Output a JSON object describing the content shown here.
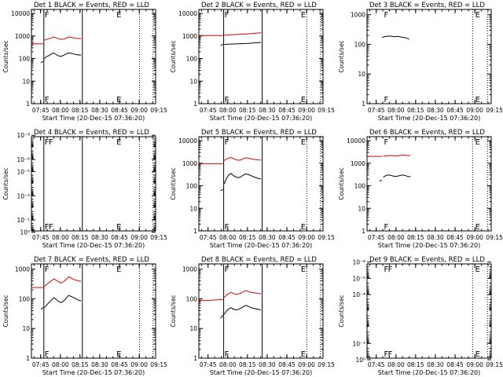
{
  "colors": {
    "events": "#000000",
    "lld": "#dd0000",
    "axis": "#000000",
    "background": "#ffffff"
  },
  "x_tick_labels": [
    "07:45",
    "08:00",
    "08:15",
    "08:30",
    "08:45",
    "09:00",
    "09:15"
  ],
  "xlabel": "Start Time (20-Dec-15 07:36:20)",
  "ylabel": "Counts/sec",
  "chart_data": [
    {
      "type": "line",
      "title": "Det 1 BLACK = Events, RED = LLD",
      "xlabel": "Start Time (20-Dec-15 07:36:20)",
      "ylabel": "Counts/sec",
      "xlim": [
        0,
        100
      ],
      "ylim": [
        1,
        15000
      ],
      "y_scale": "log",
      "x_tick_values": [
        7.4,
        23.3,
        39.1,
        55,
        70.9,
        86.8,
        102.6
      ],
      "y_ticks": [
        {
          "v": 1,
          "label": "1"
        },
        {
          "v": 10,
          "label": "10"
        },
        {
          "v": 100,
          "label": "100"
        },
        {
          "v": 1000,
          "label": "1000"
        },
        {
          "v": 10000,
          "label": "10000"
        }
      ],
      "solid_lines": [
        10,
        41
      ],
      "dotted_lines": [
        87,
        98
      ],
      "flags": [
        {
          "x": 10,
          "label": "F"
        },
        {
          "x": 67.8,
          "label": "E"
        }
      ],
      "series": [
        {
          "key": "lld",
          "x": [
            0,
            3,
            6,
            9,
            9.5
          ],
          "y": [
            450,
            450,
            450,
            450,
            450
          ]
        },
        {
          "key": "events",
          "x": [
            7.5,
            8.5,
            9.5
          ],
          "y": [
            65,
            70,
            75
          ]
        },
        {
          "key": "events",
          "x": [
            10.5,
            12,
            14,
            16,
            18,
            20,
            22,
            24,
            26,
            28,
            30,
            32,
            34,
            36,
            38,
            40
          ],
          "y": [
            100,
            120,
            135,
            160,
            175,
            150,
            130,
            125,
            140,
            160,
            175,
            170,
            160,
            150,
            145,
            140
          ]
        },
        {
          "key": "lld",
          "x": [
            10.5,
            12,
            14,
            16,
            18,
            20,
            22,
            24,
            26,
            28,
            30,
            32,
            34,
            36,
            38,
            40
          ],
          "y": [
            650,
            700,
            760,
            820,
            900,
            820,
            760,
            700,
            730,
            800,
            900,
            870,
            820,
            790,
            780,
            770
          ]
        }
      ]
    },
    {
      "type": "line",
      "title": "Det 2 BLACK = Events, RED = LLD",
      "xlabel": "Start Time (20-Dec-15 07:36:20)",
      "ylabel": "Counts/sec",
      "xlim": [
        0,
        100
      ],
      "ylim": [
        1,
        15000
      ],
      "y_scale": "log",
      "x_tick_values": [
        7.4,
        23.3,
        39.1,
        55,
        70.9,
        86.8,
        102.6
      ],
      "y_ticks": [
        {
          "v": 1,
          "label": "1"
        },
        {
          "v": 10,
          "label": "10"
        },
        {
          "v": 100,
          "label": "100"
        },
        {
          "v": 1000,
          "label": "1000"
        },
        {
          "v": 10000,
          "label": "10000"
        }
      ],
      "solid_lines": [
        20,
        51
      ],
      "dotted_lines": [
        87,
        98
      ],
      "flags": [
        {
          "x": 20,
          "label": "F"
        },
        {
          "x": 81.5,
          "label": "E"
        }
      ],
      "series": [
        {
          "key": "lld",
          "x": [
            0,
            5,
            10,
            15,
            19.5
          ],
          "y": [
            1050,
            1050,
            1050,
            1050,
            1050
          ]
        },
        {
          "key": "events",
          "x": [
            17.5,
            18.5,
            19.5
          ],
          "y": [
            380,
            400,
            420
          ]
        },
        {
          "key": "events",
          "x": [
            20.5,
            24,
            28,
            32,
            36,
            40,
            44,
            48,
            50
          ],
          "y": [
            420,
            430,
            440,
            450,
            460,
            470,
            490,
            510,
            520
          ]
        },
        {
          "key": "lld",
          "x": [
            20.5,
            24,
            28,
            32,
            36,
            40,
            44,
            48,
            50
          ],
          "y": [
            1100,
            1120,
            1150,
            1180,
            1210,
            1250,
            1300,
            1350,
            1380
          ]
        }
      ]
    },
    {
      "type": "line",
      "title": "Det 3 BLACK = Events, RED = LLD",
      "xlabel": "Start Time (20-Dec-15 07:36:20)",
      "ylabel": "Counts/sec",
      "xlim": [
        0,
        100
      ],
      "ylim": [
        1,
        1500
      ],
      "y_scale": "log",
      "x_tick_values": [
        7.4,
        23.3,
        39.1,
        55,
        70.9,
        86.8,
        102.6
      ],
      "y_ticks": [
        {
          "v": 1,
          "label": "1"
        },
        {
          "v": 10,
          "label": "10"
        },
        {
          "v": 100,
          "label": "100"
        },
        {
          "v": 1000,
          "label": "1000"
        }
      ],
      "solid_lines": [],
      "dotted_lines": [
        85,
        97
      ],
      "flags": [
        {
          "x": 13,
          "label": "F"
        },
        {
          "x": 86.5,
          "label": "E"
        }
      ],
      "series": [
        {
          "key": "events",
          "x": [
            12,
            14,
            16,
            18,
            20,
            22,
            24,
            26,
            28,
            30,
            32,
            34
          ],
          "y": [
            170,
            180,
            185,
            190,
            185,
            180,
            185,
            180,
            175,
            170,
            160,
            150
          ]
        }
      ]
    },
    {
      "type": "line",
      "title": "Det 4 BLACK = Events, RED = LLD",
      "xlabel": "Start Time (20-Dec-15 07:36:20)",
      "ylabel": "Counts/sec",
      "xlim": [
        0,
        100
      ],
      "ylim": [
        0.8,
        1.3e-08
      ],
      "y_scale": "log",
      "x_tick_values": [
        7.4,
        23.3,
        39.1,
        55,
        70.9,
        86.8,
        102.6
      ],
      "y_ticks": [
        {
          "v": 1,
          "label": "10⁰"
        },
        {
          "v": 0.1,
          "label": "10⁻¹"
        },
        {
          "v": 0.001,
          "label": "10⁻³"
        },
        {
          "v": 1e-05,
          "label": "10⁻⁵"
        },
        {
          "v": 1e-06,
          "label": "10⁻⁶"
        },
        {
          "v": 1e-08,
          "label": "10⁻⁸"
        }
      ],
      "solid_lines": [
        10,
        41
      ],
      "dotted_lines": [
        87,
        98
      ],
      "flags": [
        {
          "x": 10,
          "label": "F"
        },
        {
          "x": 13.2,
          "label": "F"
        },
        {
          "x": 67.8,
          "label": "E"
        }
      ],
      "series": []
    },
    {
      "type": "line",
      "title": "Det 5 BLACK = Events, RED = LLD",
      "xlabel": "Start Time (20-Dec-15 07:36:20)",
      "ylabel": "Counts/sec",
      "xlim": [
        0,
        100
      ],
      "ylim": [
        1,
        15000
      ],
      "y_scale": "log",
      "x_tick_values": [
        7.4,
        23.3,
        39.1,
        55,
        70.9,
        86.8,
        102.6
      ],
      "y_ticks": [
        {
          "v": 1,
          "label": "1"
        },
        {
          "v": 10,
          "label": "10"
        },
        {
          "v": 100,
          "label": "100"
        },
        {
          "v": 1000,
          "label": "1000"
        },
        {
          "v": 10000,
          "label": "10000"
        }
      ],
      "solid_lines": [
        20,
        51
      ],
      "dotted_lines": [
        87,
        98
      ],
      "flags": [
        {
          "x": 20,
          "label": "F"
        },
        {
          "x": 81.5,
          "label": "E"
        }
      ],
      "series": [
        {
          "key": "lld",
          "x": [
            0,
            5,
            10,
            15,
            19.5
          ],
          "y": [
            950,
            950,
            950,
            950,
            950
          ]
        },
        {
          "key": "events",
          "x": [
            17.5,
            18.5,
            19.5
          ],
          "y": [
            60,
            65,
            70
          ]
        },
        {
          "key": "events",
          "x": [
            20.5,
            22,
            24,
            26,
            28,
            30,
            32,
            34,
            36,
            38,
            40,
            42,
            44,
            46,
            48,
            50
          ],
          "y": [
            120,
            200,
            300,
            350,
            280,
            240,
            230,
            250,
            300,
            340,
            310,
            280,
            250,
            230,
            210,
            200
          ]
        },
        {
          "key": "lld",
          "x": [
            20.5,
            22,
            24,
            26,
            28,
            30,
            32,
            34,
            36,
            38,
            40,
            42,
            44,
            46,
            48,
            50
          ],
          "y": [
            1300,
            1500,
            1700,
            1800,
            1600,
            1400,
            1350,
            1400,
            1600,
            1750,
            1650,
            1550,
            1500,
            1450,
            1400,
            1380
          ]
        }
      ]
    },
    {
      "type": "line",
      "title": "Det 6 BLACK = Events, RED = LLD",
      "xlabel": "Start Time (20-Dec-15 07:36:20)",
      "ylabel": "Counts/sec",
      "xlim": [
        0,
        100
      ],
      "ylim": [
        1,
        15000
      ],
      "y_scale": "log",
      "x_tick_values": [
        7.4,
        23.3,
        39.1,
        55,
        70.9,
        86.8,
        102.6
      ],
      "y_ticks": [
        {
          "v": 1,
          "label": "1"
        },
        {
          "v": 10,
          "label": "10"
        },
        {
          "v": 100,
          "label": "100"
        },
        {
          "v": 1000,
          "label": "1000"
        },
        {
          "v": 10000,
          "label": "10000"
        }
      ],
      "solid_lines": [],
      "dotted_lines": [
        85,
        97
      ],
      "flags": [
        {
          "x": 13,
          "label": "F"
        },
        {
          "x": 86.5,
          "label": "E"
        }
      ],
      "series": [
        {
          "key": "lld",
          "x": [
            0,
            5,
            10,
            12
          ],
          "y": [
            2000,
            2000,
            2000,
            2000
          ]
        },
        {
          "key": "events",
          "x": [
            10,
            11,
            12
          ],
          "y": [
            160,
            170,
            180
          ]
        },
        {
          "key": "events",
          "x": [
            13,
            15,
            17,
            19,
            21,
            23,
            25,
            27,
            29,
            31,
            33,
            35
          ],
          "y": [
            240,
            280,
            300,
            290,
            270,
            260,
            270,
            290,
            300,
            280,
            260,
            250
          ]
        },
        {
          "key": "lld",
          "x": [
            13,
            15,
            17,
            19,
            21,
            23,
            25,
            27,
            29,
            31,
            33,
            35
          ],
          "y": [
            2050,
            2100,
            2150,
            2200,
            2150,
            2100,
            2150,
            2250,
            2300,
            2250,
            2200,
            2150
          ]
        }
      ]
    },
    {
      "type": "line",
      "title": "Det 7 BLACK = Events, RED = LLD",
      "xlabel": "Start Time (20-Dec-15 07:36:20)",
      "ylabel": "Counts/sec",
      "xlim": [
        0,
        100
      ],
      "ylim": [
        1,
        1500
      ],
      "y_scale": "log",
      "x_tick_values": [
        7.4,
        23.3,
        39.1,
        55,
        70.9,
        86.8,
        102.6
      ],
      "y_ticks": [
        {
          "v": 1,
          "label": "1"
        },
        {
          "v": 10,
          "label": "10"
        },
        {
          "v": 100,
          "label": "100"
        },
        {
          "v": 1000,
          "label": "1000"
        }
      ],
      "solid_lines": [
        10,
        41
      ],
      "dotted_lines": [
        87,
        98
      ],
      "flags": [
        {
          "x": 10,
          "label": "F"
        },
        {
          "x": 67.8,
          "label": "E"
        }
      ],
      "series": [
        {
          "key": "lld",
          "x": [
            0,
            3,
            6,
            9,
            9.5
          ],
          "y": [
            240,
            240,
            240,
            240,
            240
          ]
        },
        {
          "key": "events",
          "x": [
            7.5,
            8.5,
            9.5
          ],
          "y": [
            45,
            48,
            50
          ]
        },
        {
          "key": "events",
          "x": [
            10.5,
            12,
            14,
            16,
            18,
            20,
            22,
            24,
            26,
            28,
            30,
            32,
            34,
            36,
            38,
            40
          ],
          "y": [
            50,
            60,
            75,
            90,
            110,
            95,
            80,
            75,
            85,
            105,
            130,
            120,
            110,
            100,
            90,
            85
          ]
        },
        {
          "key": "lld",
          "x": [
            10.5,
            12,
            14,
            16,
            18,
            20,
            22,
            24,
            26,
            28,
            30,
            32,
            34,
            36,
            38,
            40
          ],
          "y": [
            260,
            300,
            350,
            400,
            470,
            420,
            370,
            340,
            380,
            450,
            550,
            500,
            450,
            420,
            400,
            390
          ]
        }
      ]
    },
    {
      "type": "line",
      "title": "Det 8 BLACK = Events, RED = LLD",
      "xlabel": "Start Time (20-Dec-15 07:36:20)",
      "ylabel": "Counts/sec",
      "xlim": [
        0,
        100
      ],
      "ylim": [
        1,
        1500
      ],
      "y_scale": "log",
      "x_tick_values": [
        7.4,
        23.3,
        39.1,
        55,
        70.9,
        86.8,
        102.6
      ],
      "y_ticks": [
        {
          "v": 1,
          "label": "1"
        },
        {
          "v": 10,
          "label": "10"
        },
        {
          "v": 100,
          "label": "100"
        },
        {
          "v": 1000,
          "label": "1000"
        }
      ],
      "solid_lines": [
        20,
        51
      ],
      "dotted_lines": [
        87,
        98
      ],
      "flags": [
        {
          "x": 20,
          "label": "F"
        },
        {
          "x": 81.5,
          "label": "E"
        }
      ],
      "series": [
        {
          "key": "lld",
          "x": [
            0,
            5,
            10,
            15,
            19.5
          ],
          "y": [
            85,
            88,
            90,
            92,
            95
          ]
        },
        {
          "key": "events",
          "x": [
            17.5,
            18.5,
            19.5
          ],
          "y": [
            22,
            25,
            28
          ]
        },
        {
          "key": "events",
          "x": [
            20.5,
            22,
            24,
            26,
            28,
            30,
            32,
            34,
            36,
            38,
            40,
            42,
            44,
            46,
            48,
            50
          ],
          "y": [
            30,
            38,
            45,
            50,
            45,
            42,
            44,
            48,
            55,
            60,
            55,
            50,
            48,
            46,
            44,
            42
          ]
        },
        {
          "key": "lld",
          "x": [
            20.5,
            22,
            24,
            26,
            28,
            30,
            32,
            34,
            36,
            38,
            40,
            42,
            44,
            46,
            48,
            50
          ],
          "y": [
            110,
            130,
            150,
            165,
            150,
            140,
            145,
            155,
            175,
            190,
            175,
            165,
            160,
            155,
            150,
            148
          ]
        }
      ]
    },
    {
      "type": "line",
      "title": "Det 9 BLACK = Events, RED = LLD",
      "xlabel": "Start Time (20-Dec-15 07:36:20)",
      "ylabel": "Counts/sec",
      "xlim": [
        0,
        100
      ],
      "ylim": [
        0.8,
        1.3e-06
      ],
      "y_scale": "log",
      "x_tick_values": [
        7.4,
        23.3,
        39.1,
        55,
        70.9,
        86.8,
        102.6
      ],
      "y_ticks": [
        {
          "v": 1,
          "label": "10⁰"
        },
        {
          "v": 0.1,
          "label": "10⁻¹"
        },
        {
          "v": 0.0001,
          "label": "10⁻⁴"
        },
        {
          "v": 1e-05,
          "label": "10⁻⁵"
        },
        {
          "v": 1e-06,
          "label": "10⁻⁶"
        }
      ],
      "solid_lines": [],
      "dotted_lines": [
        85,
        97
      ],
      "flags": [
        {
          "x": 13,
          "label": "F"
        },
        {
          "x": 16.2,
          "label": "F"
        },
        {
          "x": 86.5,
          "label": "E"
        }
      ],
      "series": []
    }
  ]
}
